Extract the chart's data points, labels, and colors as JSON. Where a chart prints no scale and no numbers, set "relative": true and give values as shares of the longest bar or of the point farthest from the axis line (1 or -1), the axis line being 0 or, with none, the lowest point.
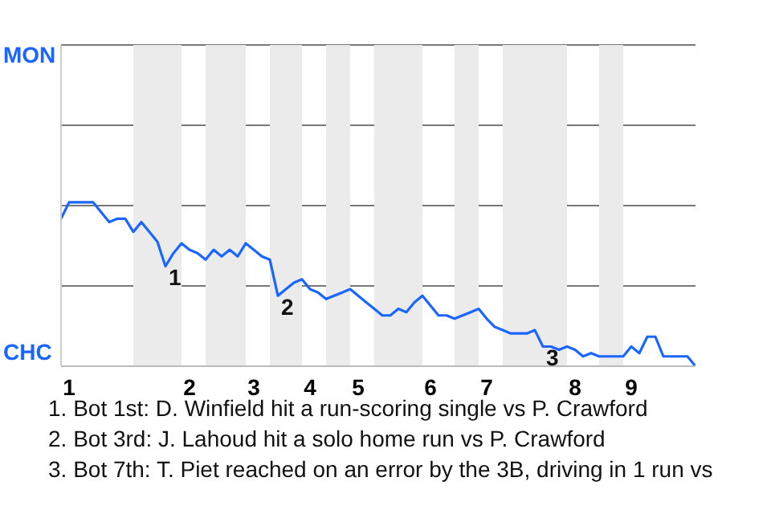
{
  "chart_data": {
    "type": "line",
    "relative": true,
    "ylim": [
      0,
      1.96
    ],
    "grid": "y",
    "categories": [
      null,
      "1",
      null,
      null,
      null,
      null,
      null,
      null,
      null,
      null,
      null,
      null,
      null,
      null,
      null,
      null,
      "2",
      null,
      null,
      null,
      null,
      null,
      null,
      null,
      "3",
      null,
      null,
      null,
      null,
      null,
      null,
      "4",
      null,
      null,
      null,
      null,
      null,
      "5",
      null,
      null,
      null,
      null,
      null,
      null,
      null,
      null,
      "6",
      null,
      null,
      null,
      null,
      null,
      null,
      "7",
      null,
      null,
      null,
      null,
      null,
      null,
      null,
      null,
      null,
      null,
      "8",
      null,
      null,
      null,
      null,
      null,
      null,
      "9",
      null,
      null,
      null,
      null,
      null,
      null,
      null,
      null
    ],
    "series": [
      {
        "color": "#1a66ff",
        "values": [
          0.9,
          1,
          1,
          1,
          1,
          0.94,
          0.88,
          0.9,
          0.9,
          0.82,
          0.88,
          0.82,
          0.76,
          0.61,
          0.69,
          0.75,
          0.71,
          0.69,
          0.65,
          0.71,
          0.67,
          0.71,
          0.67,
          0.75,
          0.71,
          0.67,
          0.65,
          0.43,
          0.47,
          0.51,
          0.53,
          0.47,
          0.45,
          0.41,
          0.43,
          0.45,
          0.47,
          0.43,
          0.39,
          0.35,
          0.31,
          0.31,
          0.35,
          0.33,
          0.39,
          0.43,
          0.37,
          0.31,
          0.31,
          0.29,
          0.31,
          0.33,
          0.35,
          0.29,
          0.24,
          0.22,
          0.2,
          0.2,
          0.2,
          0.22,
          0.12,
          0.12,
          0.1,
          0.12,
          0.1,
          0.06,
          0.08,
          0.06,
          0.06,
          0.06,
          0.06,
          0.12,
          0.08,
          0.18,
          0.18,
          0.06,
          0.06,
          0.06,
          0.06,
          0
        ],
        "line_style": "solid"
      }
    ],
    "annotations": [
      "MON",
      "CHC",
      {
        "text": "1",
        "y": 0.61
      },
      {
        "text": "2",
        "y": 0.43
      },
      {
        "text": "3",
        "y": 0.12
      },
      "1. Bot 1st: D. Winfield hit a run-scoring single vs P. Crawford",
      "2. Bot 3rd: J. Lahoud hit a solo home run vs P. Crawford",
      "3. Bot 7th: T. Piet reached on an error by the 3B, driving in 1 run vs"
    ]
  }
}
